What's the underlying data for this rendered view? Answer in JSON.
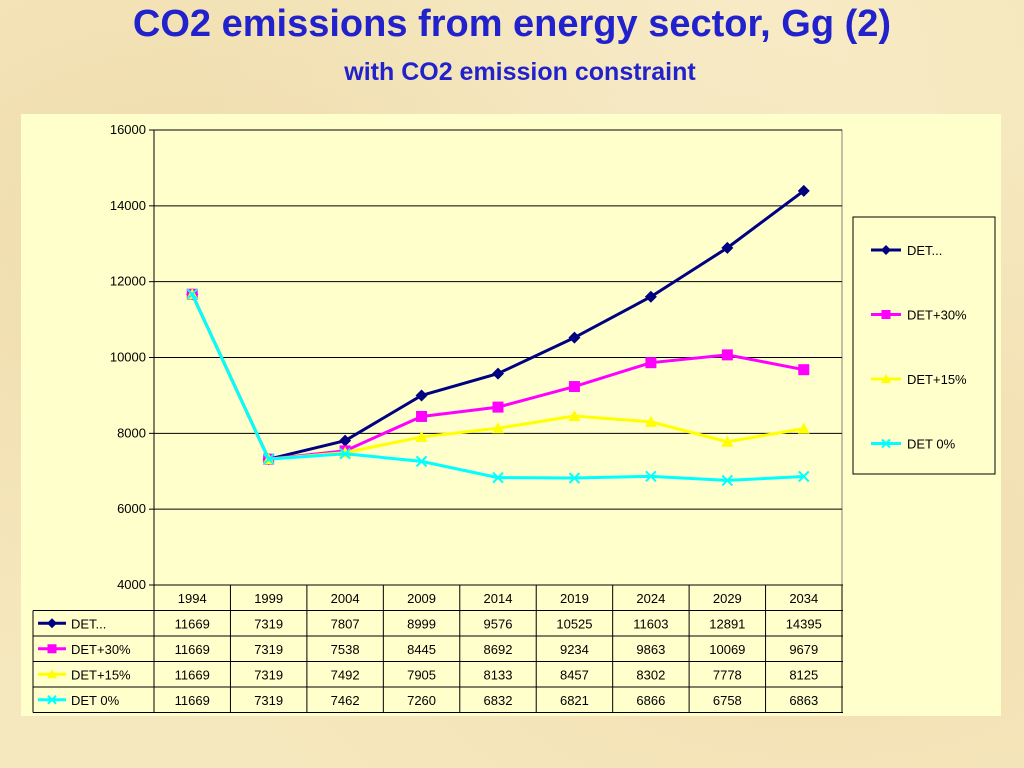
{
  "slide": {
    "title": "CO2 emissions from energy sector, Gg (2)",
    "subtitle": "with CO2 emission constraint"
  },
  "chart_data": {
    "type": "line",
    "categories": [
      "1994",
      "1999",
      "2004",
      "2009",
      "2014",
      "2019",
      "2024",
      "2029",
      "2034"
    ],
    "ylim": [
      4000,
      16000
    ],
    "yticks": [
      4000,
      6000,
      8000,
      10000,
      12000,
      14000,
      16000
    ],
    "grid": true,
    "legend": "right",
    "data_table": true,
    "series": [
      {
        "name": "DET...",
        "color": "#000080",
        "marker": "diamond",
        "values": [
          11669,
          7319,
          7807,
          8999,
          9576,
          10525,
          11603,
          12891,
          14395
        ]
      },
      {
        "name": "DET+30%",
        "color": "#ff00ff",
        "marker": "square",
        "values": [
          11669,
          7319,
          7538,
          8445,
          8692,
          9234,
          9863,
          10069,
          9679
        ]
      },
      {
        "name": "DET+15%",
        "color": "#ffff00",
        "marker": "triangle",
        "values": [
          11669,
          7319,
          7492,
          7905,
          8133,
          8457,
          8302,
          7778,
          8125
        ]
      },
      {
        "name": "DET 0%",
        "color": "#00ffff",
        "marker": "x",
        "values": [
          11669,
          7319,
          7462,
          7260,
          6832,
          6821,
          6866,
          6758,
          6863
        ]
      }
    ]
  }
}
